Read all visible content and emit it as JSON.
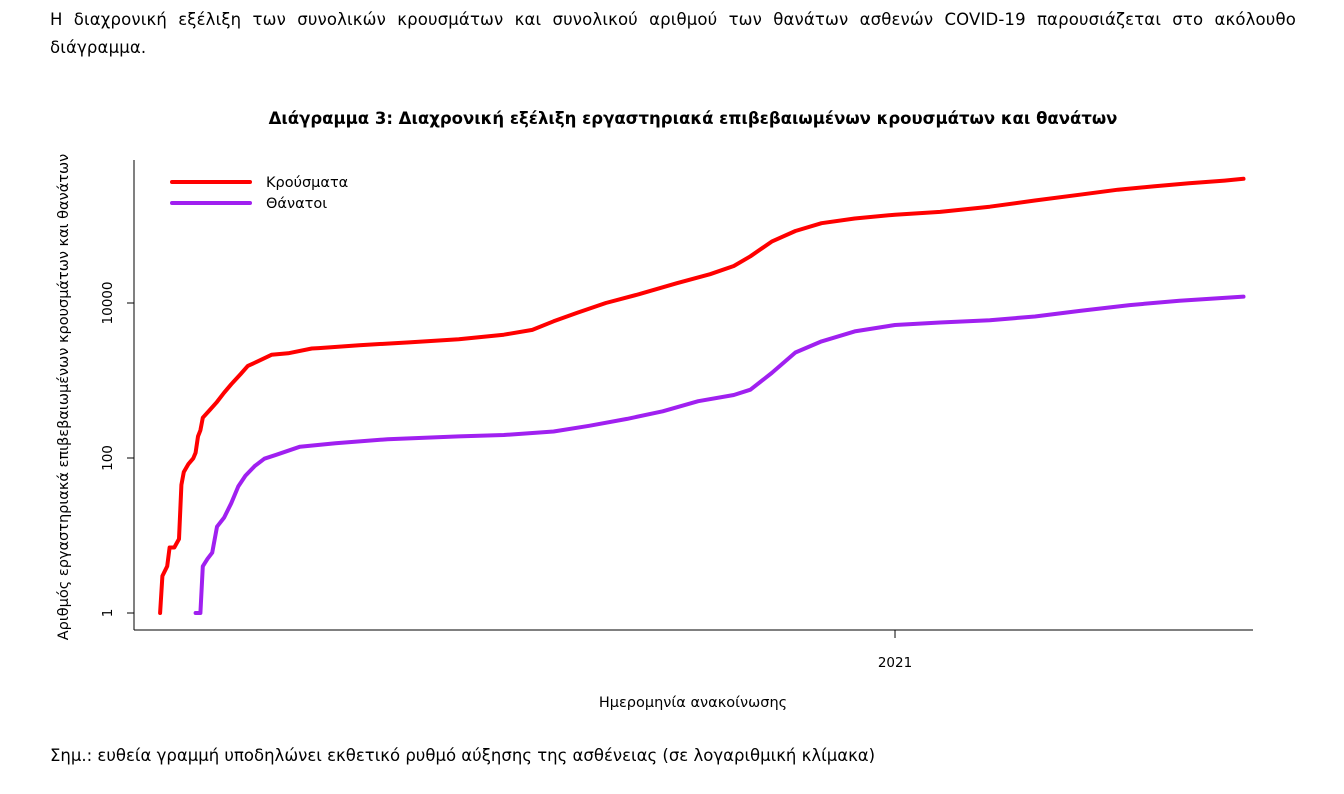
{
  "intro_text": "Η διαχρονική εξέλιξη των συνολικών κρουσμάτων και συνολικού αριθμού των θανάτων ασθενών COVID-19 παρουσιάζεται στο ακόλουθο διάγραμμα.",
  "note_text": "Σημ.: ευθεία γραμμή υποδηλώνει εκθετικό ρυθμό αύξησης της ασθένειας (σε λογαριθμική κλίμακα)",
  "chart_data": {
    "type": "line",
    "title": "Διάγραμμα 3: Διαχρονική εξέλιξη εργαστηριακά επιβεβαιωμένων κρουσμάτων και θανάτων",
    "xlabel": "Ημερομηνία ανακοίνωσης",
    "ylabel": "Αριθμός εργαστηριακά επιβεβαιωμένων κρουσμάτων και θανάτων",
    "y_scale": "log",
    "ylim": [
      1,
      600000
    ],
    "xlim": [
      "2020-02-15",
      "2021-06-01"
    ],
    "x_ticks": [
      {
        "x": "2021-01-01",
        "label": "2021"
      }
    ],
    "y_ticks": [
      {
        "y": 1,
        "label": "1"
      },
      {
        "y": 100,
        "label": "100"
      },
      {
        "y": 10000,
        "label": "10000"
      }
    ],
    "legend": "top-left",
    "grid": false,
    "series": [
      {
        "name": "Κρούσματα",
        "color": "#ff0000",
        "points": [
          [
            "2020-02-26",
            1
          ],
          [
            "2020-02-27",
            3
          ],
          [
            "2020-02-29",
            4
          ],
          [
            "2020-03-01",
            7
          ],
          [
            "2020-03-03",
            7
          ],
          [
            "2020-03-05",
            9
          ],
          [
            "2020-03-06",
            45
          ],
          [
            "2020-03-07",
            66
          ],
          [
            "2020-03-09",
            84
          ],
          [
            "2020-03-11",
            99
          ],
          [
            "2020-03-12",
            117
          ],
          [
            "2020-03-13",
            190
          ],
          [
            "2020-03-14",
            228
          ],
          [
            "2020-03-15",
            331
          ],
          [
            "2020-03-18",
            418
          ],
          [
            "2020-03-21",
            530
          ],
          [
            "2020-03-24",
            695
          ],
          [
            "2020-03-27",
            892
          ],
          [
            "2020-03-31",
            1212
          ],
          [
            "2020-04-03",
            1544
          ],
          [
            "2020-04-07",
            1755
          ],
          [
            "2020-04-13",
            2145
          ],
          [
            "2020-04-20",
            2245
          ],
          [
            "2020-04-30",
            2591
          ],
          [
            "2020-05-03",
            2620
          ],
          [
            "2020-05-20",
            2850
          ],
          [
            "2020-06-10",
            3100
          ],
          [
            "2020-07-01",
            3400
          ],
          [
            "2020-07-20",
            3900
          ],
          [
            "2020-08-01",
            4500
          ],
          [
            "2020-08-10",
            5800
          ],
          [
            "2020-08-20",
            7500
          ],
          [
            "2020-09-01",
            10000
          ],
          [
            "2020-09-15",
            13000
          ],
          [
            "2020-10-01",
            18000
          ],
          [
            "2020-10-15",
            23500
          ],
          [
            "2020-10-25",
            30000
          ],
          [
            "2020-11-01",
            40000
          ],
          [
            "2020-11-10",
            62000
          ],
          [
            "2020-11-20",
            85000
          ],
          [
            "2020-12-01",
            107000
          ],
          [
            "2020-12-15",
            123000
          ],
          [
            "2021-01-01",
            138000
          ],
          [
            "2021-01-20",
            150000
          ],
          [
            "2021-02-10",
            175000
          ],
          [
            "2021-03-01",
            210000
          ],
          [
            "2021-03-20",
            250000
          ],
          [
            "2021-04-05",
            290000
          ],
          [
            "2021-04-20",
            320000
          ],
          [
            "2021-05-05",
            350000
          ],
          [
            "2021-05-20",
            380000
          ],
          [
            "2021-05-28",
            400000
          ]
        ]
      },
      {
        "name": "Θάνατοι",
        "color": "#a020f0",
        "points": [
          [
            "2020-03-12",
            1
          ],
          [
            "2020-03-14",
            1
          ],
          [
            "2020-03-15",
            4
          ],
          [
            "2020-03-17",
            5
          ],
          [
            "2020-03-19",
            6
          ],
          [
            "2020-03-21",
            13
          ],
          [
            "2020-03-24",
            17
          ],
          [
            "2020-03-27",
            26
          ],
          [
            "2020-03-30",
            43
          ],
          [
            "2020-04-02",
            59
          ],
          [
            "2020-04-06",
            79
          ],
          [
            "2020-04-10",
            98
          ],
          [
            "2020-04-15",
            110
          ],
          [
            "2020-04-25",
            140
          ],
          [
            "2020-05-10",
            155
          ],
          [
            "2020-06-01",
            175
          ],
          [
            "2020-07-01",
            190
          ],
          [
            "2020-07-20",
            198
          ],
          [
            "2020-08-10",
            220
          ],
          [
            "2020-08-25",
            260
          ],
          [
            "2020-09-10",
            320
          ],
          [
            "2020-09-25",
            400
          ],
          [
            "2020-10-10",
            540
          ],
          [
            "2020-10-25",
            650
          ],
          [
            "2020-11-01",
            760
          ],
          [
            "2020-11-10",
            1250
          ],
          [
            "2020-11-20",
            2300
          ],
          [
            "2020-12-01",
            3200
          ],
          [
            "2020-12-15",
            4300
          ],
          [
            "2021-01-01",
            5200
          ],
          [
            "2021-01-20",
            5600
          ],
          [
            "2021-02-10",
            6000
          ],
          [
            "2021-03-01",
            6700
          ],
          [
            "2021-03-20",
            7900
          ],
          [
            "2021-04-10",
            9400
          ],
          [
            "2021-05-01",
            10700
          ],
          [
            "2021-05-28",
            12100
          ]
        ]
      }
    ]
  }
}
